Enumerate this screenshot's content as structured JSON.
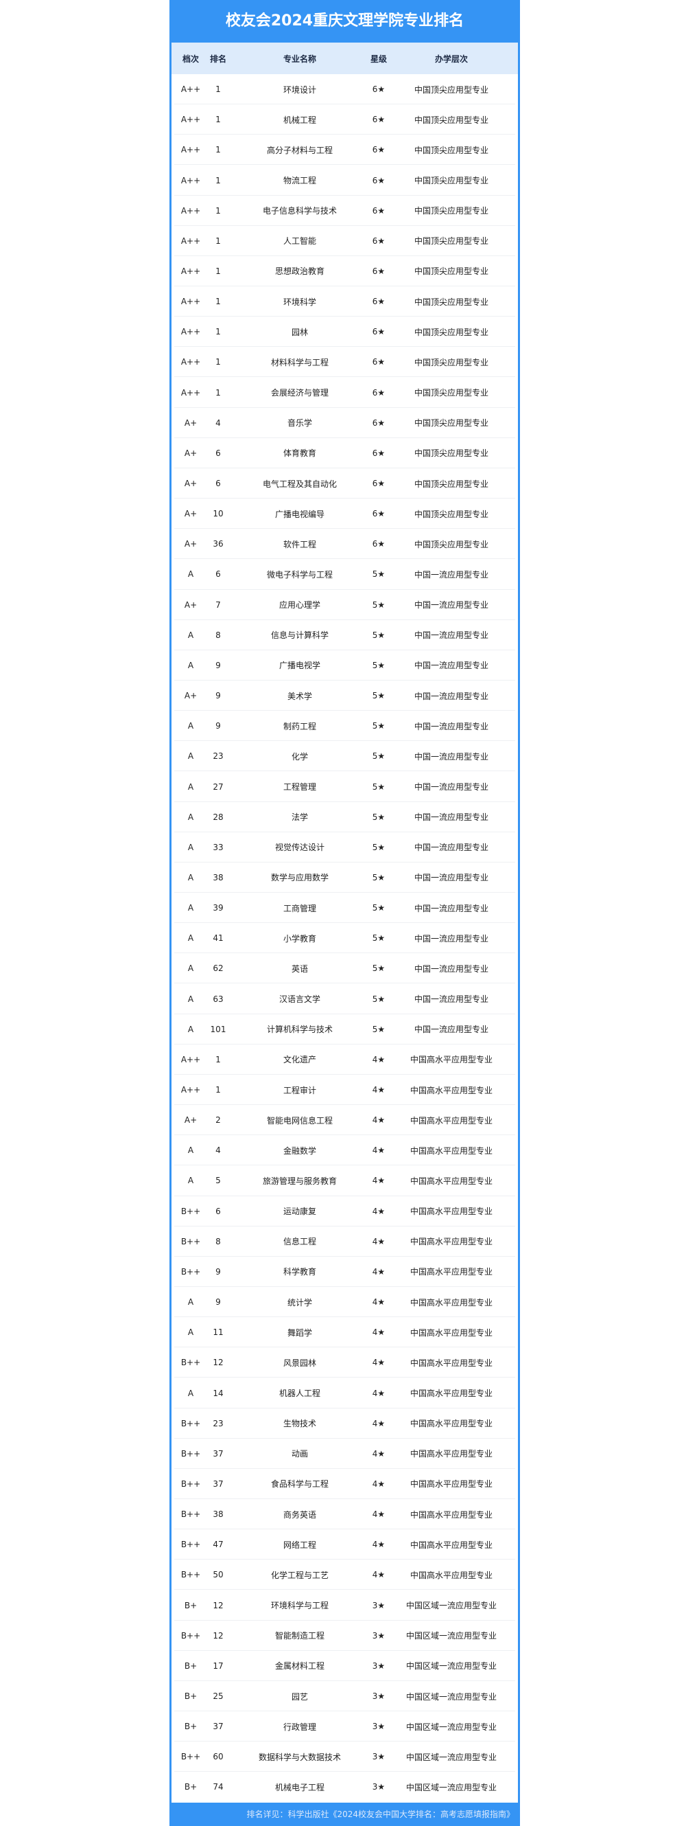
{
  "title": "校友会2024重庆文理学院专业排名",
  "colors": {
    "accent": "#3594f4",
    "header_bg": "#ddebfb"
  },
  "columns": [
    "档次",
    "排名",
    "专业名称",
    "星级",
    "办学层次"
  ],
  "rows": [
    [
      "A++",
      "1",
      "环境设计",
      "6★",
      "中国顶尖应用型专业"
    ],
    [
      "A++",
      "1",
      "机械工程",
      "6★",
      "中国顶尖应用型专业"
    ],
    [
      "A++",
      "1",
      "高分子材料与工程",
      "6★",
      "中国顶尖应用型专业"
    ],
    [
      "A++",
      "1",
      "物流工程",
      "6★",
      "中国顶尖应用型专业"
    ],
    [
      "A++",
      "1",
      "电子信息科学与技术",
      "6★",
      "中国顶尖应用型专业"
    ],
    [
      "A++",
      "1",
      "人工智能",
      "6★",
      "中国顶尖应用型专业"
    ],
    [
      "A++",
      "1",
      "思想政治教育",
      "6★",
      "中国顶尖应用型专业"
    ],
    [
      "A++",
      "1",
      "环境科学",
      "6★",
      "中国顶尖应用型专业"
    ],
    [
      "A++",
      "1",
      "园林",
      "6★",
      "中国顶尖应用型专业"
    ],
    [
      "A++",
      "1",
      "材料科学与工程",
      "6★",
      "中国顶尖应用型专业"
    ],
    [
      "A++",
      "1",
      "会展经济与管理",
      "6★",
      "中国顶尖应用型专业"
    ],
    [
      "A+",
      "4",
      "音乐学",
      "6★",
      "中国顶尖应用型专业"
    ],
    [
      "A+",
      "6",
      "体育教育",
      "6★",
      "中国顶尖应用型专业"
    ],
    [
      "A+",
      "6",
      "电气工程及其自动化",
      "6★",
      "中国顶尖应用型专业"
    ],
    [
      "A+",
      "10",
      "广播电视编导",
      "6★",
      "中国顶尖应用型专业"
    ],
    [
      "A+",
      "36",
      "软件工程",
      "6★",
      "中国顶尖应用型专业"
    ],
    [
      "A",
      "6",
      "微电子科学与工程",
      "5★",
      "中国一流应用型专业"
    ],
    [
      "A+",
      "7",
      "应用心理学",
      "5★",
      "中国一流应用型专业"
    ],
    [
      "A",
      "8",
      "信息与计算科学",
      "5★",
      "中国一流应用型专业"
    ],
    [
      "A",
      "9",
      "广播电视学",
      "5★",
      "中国一流应用型专业"
    ],
    [
      "A+",
      "9",
      "美术学",
      "5★",
      "中国一流应用型专业"
    ],
    [
      "A",
      "9",
      "制药工程",
      "5★",
      "中国一流应用型专业"
    ],
    [
      "A",
      "23",
      "化学",
      "5★",
      "中国一流应用型专业"
    ],
    [
      "A",
      "27",
      "工程管理",
      "5★",
      "中国一流应用型专业"
    ],
    [
      "A",
      "28",
      "法学",
      "5★",
      "中国一流应用型专业"
    ],
    [
      "A",
      "33",
      "视觉传达设计",
      "5★",
      "中国一流应用型专业"
    ],
    [
      "A",
      "38",
      "数学与应用数学",
      "5★",
      "中国一流应用型专业"
    ],
    [
      "A",
      "39",
      "工商管理",
      "5★",
      "中国一流应用型专业"
    ],
    [
      "A",
      "41",
      "小学教育",
      "5★",
      "中国一流应用型专业"
    ],
    [
      "A",
      "62",
      "英语",
      "5★",
      "中国一流应用型专业"
    ],
    [
      "A",
      "63",
      "汉语言文学",
      "5★",
      "中国一流应用型专业"
    ],
    [
      "A",
      "101",
      "计算机科学与技术",
      "5★",
      "中国一流应用型专业"
    ],
    [
      "A++",
      "1",
      "文化遗产",
      "4★",
      "中国高水平应用型专业"
    ],
    [
      "A++",
      "1",
      "工程审计",
      "4★",
      "中国高水平应用型专业"
    ],
    [
      "A+",
      "2",
      "智能电网信息工程",
      "4★",
      "中国高水平应用型专业"
    ],
    [
      "A",
      "4",
      "金融数学",
      "4★",
      "中国高水平应用型专业"
    ],
    [
      "A",
      "5",
      "旅游管理与服务教育",
      "4★",
      "中国高水平应用型专业"
    ],
    [
      "B++",
      "6",
      "运动康复",
      "4★",
      "中国高水平应用型专业"
    ],
    [
      "B++",
      "8",
      "信息工程",
      "4★",
      "中国高水平应用型专业"
    ],
    [
      "B++",
      "9",
      "科学教育",
      "4★",
      "中国高水平应用型专业"
    ],
    [
      "A",
      "9",
      "统计学",
      "4★",
      "中国高水平应用型专业"
    ],
    [
      "A",
      "11",
      "舞蹈学",
      "4★",
      "中国高水平应用型专业"
    ],
    [
      "B++",
      "12",
      "风景园林",
      "4★",
      "中国高水平应用型专业"
    ],
    [
      "A",
      "14",
      "机器人工程",
      "4★",
      "中国高水平应用型专业"
    ],
    [
      "B++",
      "23",
      "生物技术",
      "4★",
      "中国高水平应用型专业"
    ],
    [
      "B++",
      "37",
      "动画",
      "4★",
      "中国高水平应用型专业"
    ],
    [
      "B++",
      "37",
      "食品科学与工程",
      "4★",
      "中国高水平应用型专业"
    ],
    [
      "B++",
      "38",
      "商务英语",
      "4★",
      "中国高水平应用型专业"
    ],
    [
      "B++",
      "47",
      "网络工程",
      "4★",
      "中国高水平应用型专业"
    ],
    [
      "B++",
      "50",
      "化学工程与工艺",
      "4★",
      "中国高水平应用型专业"
    ],
    [
      "B+",
      "12",
      "环境科学与工程",
      "3★",
      "中国区域一流应用型专业"
    ],
    [
      "B++",
      "12",
      "智能制造工程",
      "3★",
      "中国区域一流应用型专业"
    ],
    [
      "B+",
      "17",
      "金属材料工程",
      "3★",
      "中国区域一流应用型专业"
    ],
    [
      "B+",
      "25",
      "园艺",
      "3★",
      "中国区域一流应用型专业"
    ],
    [
      "B+",
      "37",
      "行政管理",
      "3★",
      "中国区域一流应用型专业"
    ],
    [
      "B++",
      "60",
      "数据科学与大数据技术",
      "3★",
      "中国区域一流应用型专业"
    ],
    [
      "B+",
      "74",
      "机械电子工程",
      "3★",
      "中国区域一流应用型专业"
    ]
  ],
  "footer": "排名详见：科学出版社《2024校友会中国大学排名：高考志愿填报指南》"
}
